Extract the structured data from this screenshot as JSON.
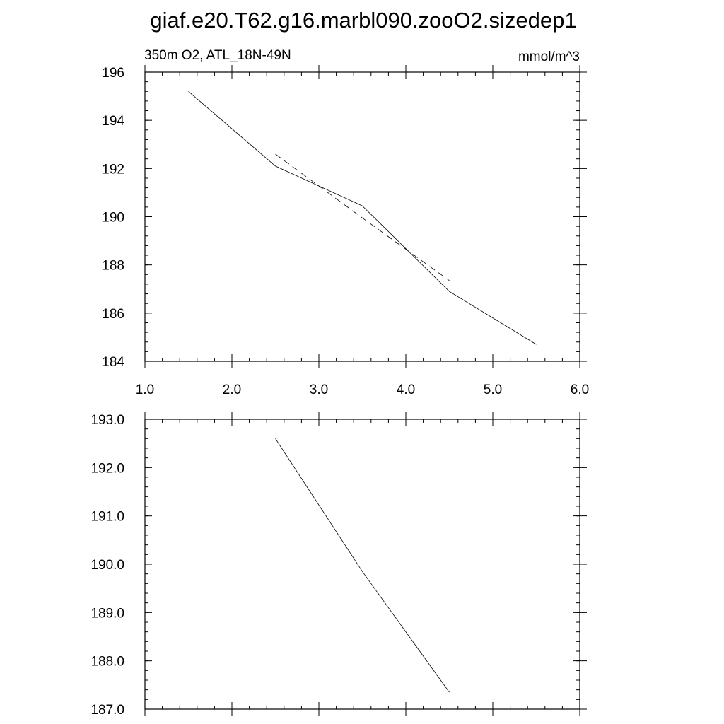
{
  "title": "giaf.e20.T62.g16.marbl090.zooO2.sizedep1",
  "chart_data": [
    {
      "type": "line",
      "left_label": "350m O2, ATL_18N-49N",
      "right_label": "mmol/m^3",
      "xlim": [
        1.0,
        6.0
      ],
      "ylim": [
        184,
        196
      ],
      "x_ticks": [
        1.0,
        2.0,
        3.0,
        4.0,
        5.0,
        6.0
      ],
      "x_tick_labels": [
        "1.0",
        "2.0",
        "3.0",
        "4.0",
        "5.0",
        "6.0"
      ],
      "x_minor_step": 0.2,
      "y_ticks": [
        184,
        186,
        188,
        190,
        192,
        194,
        196
      ],
      "y_tick_labels": [
        "184",
        "186",
        "188",
        "190",
        "192",
        "194",
        "196"
      ],
      "y_minor_step": 0.4,
      "grid": false,
      "series": [
        {
          "style": "solid",
          "x": [
            1.5,
            2.5,
            3.5,
            4.5,
            5.5
          ],
          "y": [
            195.2,
            192.1,
            190.45,
            186.9,
            184.7
          ]
        },
        {
          "style": "dashed",
          "x": [
            2.5,
            3.5,
            4.5
          ],
          "y": [
            192.6,
            189.95,
            187.35
          ]
        }
      ]
    },
    {
      "type": "line",
      "xlim": [
        1.0,
        6.0
      ],
      "ylim": [
        187.0,
        193.0
      ],
      "x_ticks": [
        1.0,
        2.0,
        3.0,
        4.0,
        5.0,
        6.0
      ],
      "x_tick_labels": [],
      "x_minor_step": 0.2,
      "y_ticks": [
        187.0,
        188.0,
        189.0,
        190.0,
        191.0,
        192.0,
        193.0
      ],
      "y_tick_labels": [
        "187.0",
        "188.0",
        "189.0",
        "190.0",
        "191.0",
        "192.0",
        "193.0"
      ],
      "y_minor_step": 0.2,
      "grid": false,
      "series": [
        {
          "style": "solid",
          "x": [
            2.5,
            3.5,
            4.5
          ],
          "y": [
            192.6,
            189.85,
            187.35
          ]
        }
      ]
    }
  ]
}
